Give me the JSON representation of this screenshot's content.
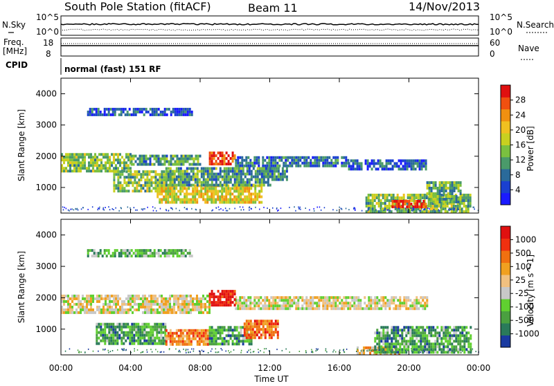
{
  "header": {
    "station": "South Pole Station (fitACF)",
    "beam": "Beam 11",
    "date": "14/Nov/2013"
  },
  "noise_panel": {
    "left_label": "N.Sky",
    "right_label": "N.Search",
    "left_ticks": [
      "10^5",
      "10^0"
    ],
    "right_ticks": [
      "10^5",
      "10^0"
    ]
  },
  "freq_panel": {
    "left_label_line1": "Freq.",
    "left_label_line2": "[MHz]",
    "right_label": "Nave",
    "left_ticks": [
      "18",
      "8"
    ],
    "right_ticks": [
      "60",
      "0"
    ]
  },
  "cpid": {
    "label": "CPID",
    "program": "normal (fast) 151 RF"
  },
  "x_axis": {
    "label": "Time UT",
    "ticks": [
      "00:00",
      "04:00",
      "08:00",
      "12:00",
      "16:00",
      "20:00",
      "00:00"
    ]
  },
  "chart_data": [
    {
      "type": "heatmap",
      "quantity": "Power",
      "ylabel": "Slant Range [km]",
      "xlabel": "Time UT",
      "ylim": [
        180,
        4500
      ],
      "yticks": [
        1000,
        2000,
        3000,
        4000
      ],
      "xlim": [
        "00:00",
        "24:00"
      ],
      "colorbar": {
        "label": "Power [dB]",
        "ticks": [
          "28",
          "24",
          "20",
          "16",
          "12",
          "8",
          "4"
        ],
        "colors": [
          "#1a1aff",
          "#1a40d0",
          "#2a6a9a",
          "#4a9a6a",
          "#7ac040",
          "#c8d020",
          "#f0c020",
          "#f09010",
          "#f05010",
          "#e01010"
        ]
      },
      "regions": [
        {
          "t0": 0.0,
          "t1": 4.0,
          "r0": 1550,
          "r1": 2100,
          "level": 0.45
        },
        {
          "t0": 4.0,
          "t1": 8.0,
          "r0": 1700,
          "r1": 2050,
          "level": 0.35
        },
        {
          "t0": 8.5,
          "t1": 10.0,
          "r0": 1750,
          "r1": 2150,
          "level": 0.9
        },
        {
          "t0": 10.0,
          "t1": 16.5,
          "r0": 1700,
          "r1": 2000,
          "level": 0.25
        },
        {
          "t0": 16.5,
          "t1": 21.0,
          "r0": 1550,
          "r1": 1900,
          "level": 0.2
        },
        {
          "t0": 3.0,
          "t1": 6.5,
          "r0": 850,
          "r1": 1550,
          "level": 0.45
        },
        {
          "t0": 5.5,
          "t1": 11.5,
          "r0": 500,
          "r1": 1100,
          "level": 0.6
        },
        {
          "t0": 6.0,
          "t1": 12.0,
          "r0": 1100,
          "r1": 1650,
          "level": 0.35
        },
        {
          "t0": 17.5,
          "t1": 23.5,
          "r0": 250,
          "r1": 800,
          "level": 0.45
        },
        {
          "t0": 19.0,
          "t1": 21.0,
          "r0": 350,
          "r1": 600,
          "level": 0.95
        },
        {
          "t0": 21.0,
          "t1": 23.0,
          "r0": 500,
          "r1": 1200,
          "level": 0.4
        },
        {
          "t0": 1.5,
          "t1": 7.5,
          "r0": 3300,
          "r1": 3550,
          "level": 0.2
        },
        {
          "t0": 11.5,
          "t1": 13.0,
          "r0": 1250,
          "r1": 1650,
          "level": 0.3
        }
      ]
    },
    {
      "type": "heatmap",
      "quantity": "Velocity",
      "ylabel": "Slant Range [km]",
      "xlabel": "Time UT",
      "ylim": [
        180,
        4500
      ],
      "yticks": [
        1000,
        2000,
        3000,
        4000
      ],
      "xlim": [
        "00:00",
        "24:00"
      ],
      "colorbar": {
        "label": "Velocity [m s^-1]",
        "ticks": [
          "1000",
          "500",
          "100",
          "25",
          "-25",
          "-100",
          "-500",
          "-1000"
        ],
        "colors": [
          "#1a3aa0",
          "#2a7a5a",
          "#4aa040",
          "#60d030",
          "#c8c8c8",
          "#f0c080",
          "#f0a020",
          "#f07010",
          "#f03010",
          "#e01010"
        ]
      },
      "regions": [
        {
          "t0": 0.0,
          "t1": 8.5,
          "r0": 1550,
          "r1": 2100,
          "level": 0.5
        },
        {
          "t0": 10.0,
          "t1": 21.0,
          "r0": 1650,
          "r1": 2050,
          "level": 0.5
        },
        {
          "t0": 8.5,
          "t1": 10.0,
          "r0": 1750,
          "r1": 2250,
          "level": 0.95
        },
        {
          "t0": 2.0,
          "t1": 6.0,
          "r0": 550,
          "r1": 1200,
          "level": 0.25
        },
        {
          "t0": 6.0,
          "t1": 8.5,
          "r0": 500,
          "r1": 1000,
          "level": 0.7
        },
        {
          "t0": 8.5,
          "t1": 11.0,
          "r0": 500,
          "r1": 1100,
          "level": 0.25
        },
        {
          "t0": 10.5,
          "t1": 12.5,
          "r0": 700,
          "r1": 1300,
          "level": 0.75
        },
        {
          "t0": 17.0,
          "t1": 19.5,
          "r0": 200,
          "r1": 450,
          "level": 0.6
        },
        {
          "t0": 18.0,
          "t1": 23.5,
          "r0": 300,
          "r1": 1100,
          "level": 0.25
        },
        {
          "t0": 1.5,
          "t1": 7.5,
          "r0": 3300,
          "r1": 3550,
          "level": 0.3
        }
      ]
    }
  ]
}
